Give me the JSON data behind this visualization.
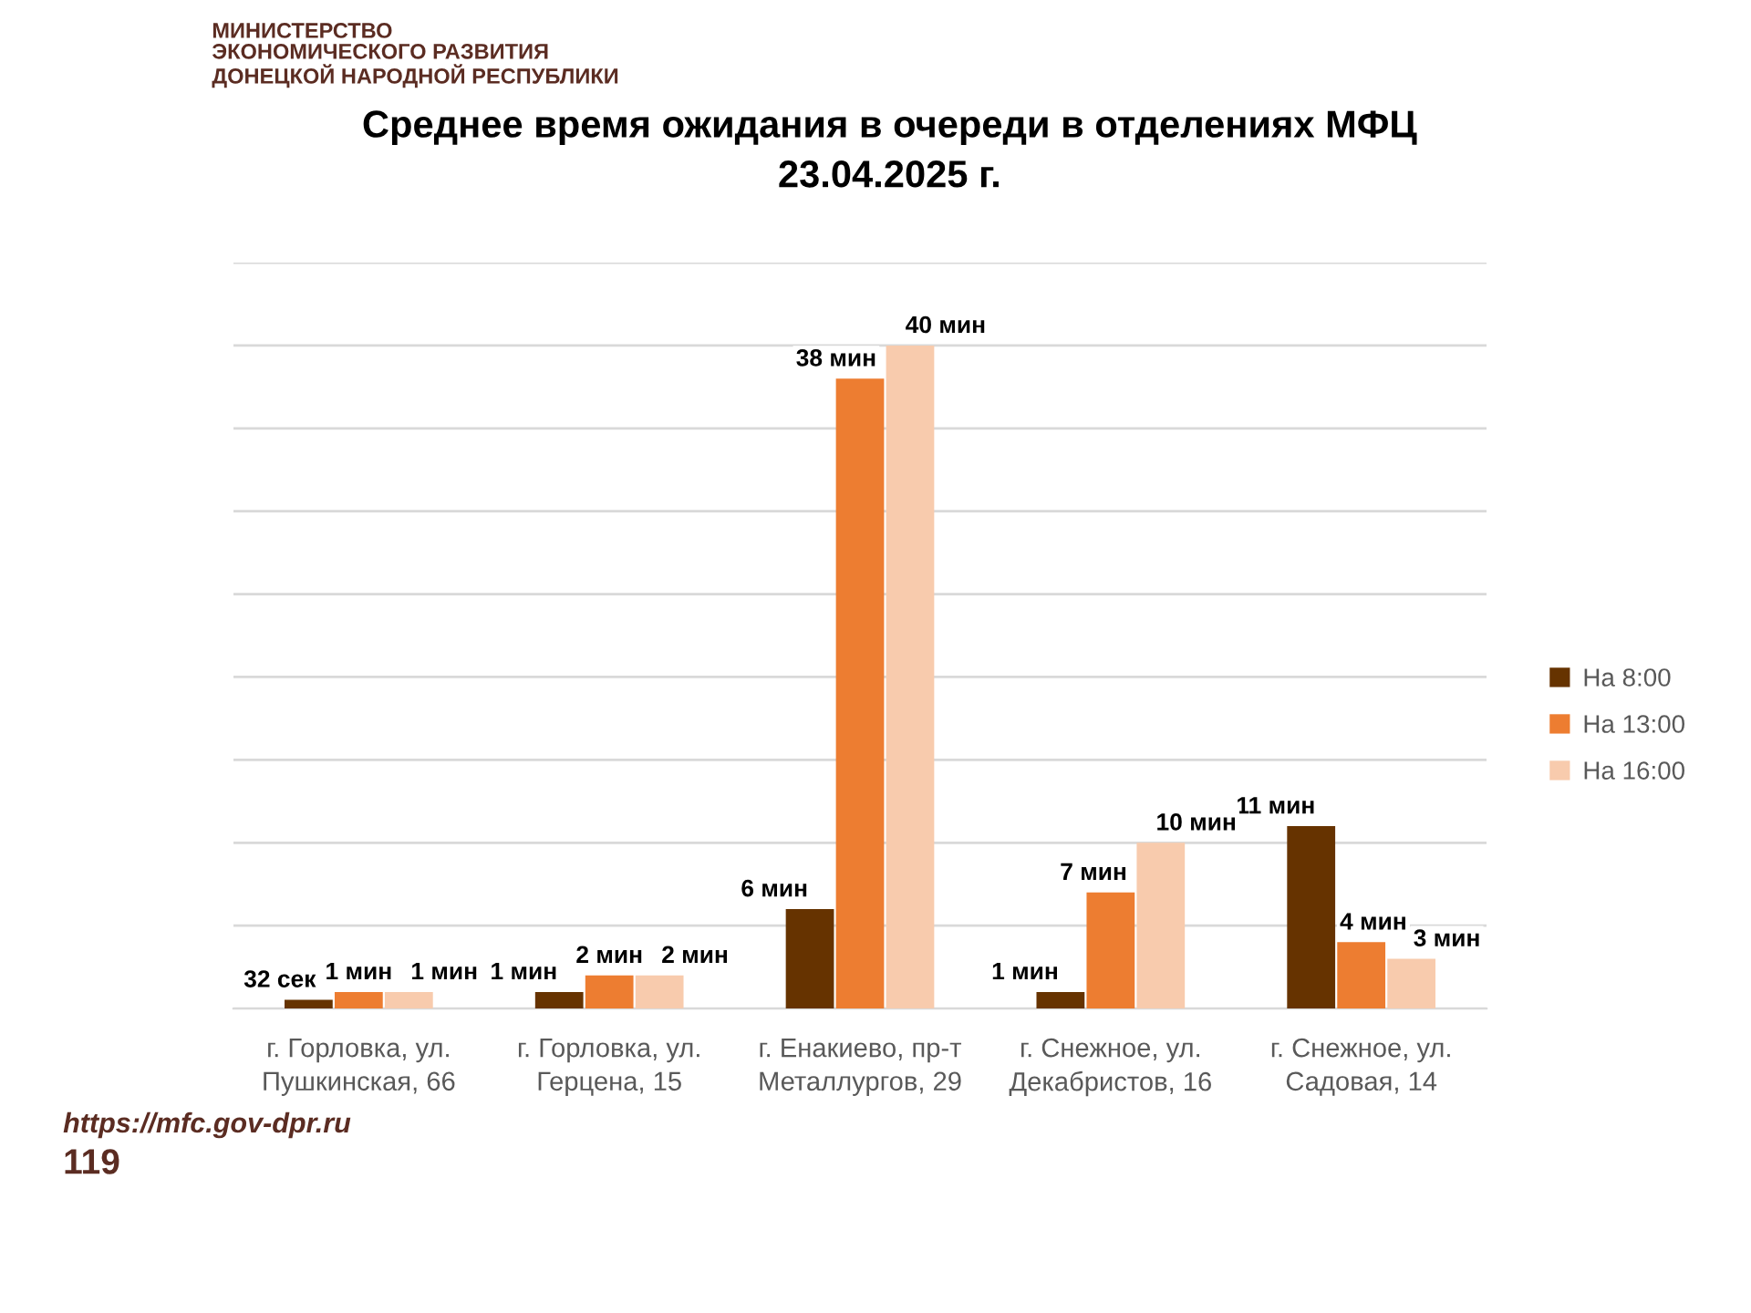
{
  "chart_data": {
    "type": "bar",
    "title": "Среднее время ожидания в очереди в отделениях МФЦ",
    "subtitle": "23.04.2025 г.",
    "annotations": [
      "МИНИСТЕРСТВО\nЭКОНОМИЧЕСКОГО РАЗВИТИЯ\nДОНЕЦКОЙ НАРОДНОЙ РЕСПУБЛИКИ",
      "https://mfc.gov-dpr.ru",
      "119",
      {
        "text": "32 сек",
        "x": "г. Горловка, ул.\nПушкинская, 66",
        "y": 0.53
      }
    ],
    "categories": [
      "г. Горловка, ул.\nПушкинская, 66",
      "г. Горловка, ул.\nГерцена, 15",
      "г. Енакиево, пр-т\nМеталлургов, 29",
      "г. Снежное, ул.\nДекабристов, 16",
      "г. Снежное, ул.\nСадовая, 14"
    ],
    "series": [
      {
        "name": "На 8:00",
        "color": "#663300",
        "values": [
          0.53,
          1,
          6,
          1,
          11
        ],
        "value_labels": [
          null,
          "1 мин",
          "6 мин",
          "1 мин",
          "11 мин"
        ]
      },
      {
        "name": "На 13:00",
        "color": "#ed7d31",
        "values": [
          1,
          2,
          38,
          7,
          4
        ],
        "value_labels": [
          "1 мин",
          "2 мин",
          "38 мин",
          "7 мин",
          "4 мин"
        ]
      },
      {
        "name": "На 16:00",
        "color": "#f8cbad",
        "values": [
          1,
          2,
          40,
          10,
          3
        ],
        "value_labels": [
          "1 мин",
          "2 мин",
          "40 мин",
          "10 мин",
          "3 мин"
        ]
      }
    ],
    "ylim": [
      0,
      45
    ],
    "yticks": [
      {
        "value": 0,
        "label": null
      },
      {
        "value": 5,
        "label": null
      },
      {
        "value": 10,
        "label": null
      },
      {
        "value": 15,
        "label": null
      },
      {
        "value": 20,
        "label": null
      },
      {
        "value": 25,
        "label": null
      },
      {
        "value": 30,
        "label": null
      },
      {
        "value": 35,
        "label": null
      },
      {
        "value": 40,
        "label": null
      },
      {
        "value": 45,
        "label": null
      }
    ],
    "tick_labels": "x",
    "grid": "y",
    "legend": "right"
  }
}
